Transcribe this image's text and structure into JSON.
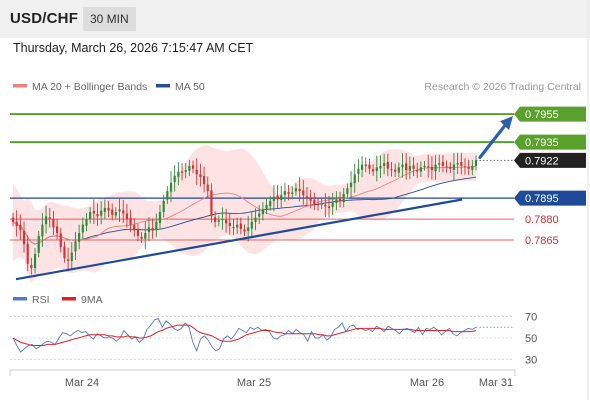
{
  "header": {
    "pair": "USD/CHF",
    "timeframe": "30 MIN",
    "timestamp": "Thursday, March 26, 2026 7:15:47 AM CET"
  },
  "legend": {
    "ma20": "MA 20 + Bollinger Bands",
    "ma50": "MA 50",
    "credit": "Research © 2026 Trading Central",
    "rsi": "RSI",
    "ma9": "9MA"
  },
  "colors": {
    "bull": "#2e8b3a",
    "bear": "#d63030",
    "ma20": "#f08080",
    "ma50": "#2b4d8c",
    "band_fill": "#fde3e3",
    "resistance": "#5aa02c",
    "support_blue": "#1f4a9a",
    "support_red": "#e86060",
    "current": "#222222",
    "rsi": "#5577cc",
    "rsi_ma": "#dd2222",
    "arrow": "#2b5fa8"
  },
  "chart_data": [
    {
      "type": "candlestick",
      "instrument": "USD/CHF",
      "timeframe": "30 MIN",
      "ylim": [
        0.7835,
        0.7968
      ],
      "x_labels": [
        "Mar 24",
        "Mar 25",
        "Mar 26",
        "Mar 31"
      ],
      "levels": [
        {
          "value": 0.7955,
          "label": "0.7955",
          "kind": "resistance"
        },
        {
          "value": 0.7935,
          "label": "0.7935",
          "kind": "resistance"
        },
        {
          "value": 0.7922,
          "label": "0.7922",
          "kind": "current"
        },
        {
          "value": 0.7895,
          "label": "0.7895",
          "kind": "pivot"
        },
        {
          "value": 0.788,
          "label": "0.7880",
          "kind": "support"
        },
        {
          "value": 0.7865,
          "label": "0.7865",
          "kind": "support"
        }
      ],
      "trendline": {
        "start": 0.7837,
        "end": 0.7894
      },
      "price_path": [
        0.7878,
        0.7875,
        0.7872,
        0.7862,
        0.7848,
        0.7845,
        0.7855,
        0.7868,
        0.7876,
        0.7882,
        0.788,
        0.7874,
        0.787,
        0.786,
        0.7852,
        0.785,
        0.7856,
        0.7864,
        0.787,
        0.7876,
        0.788,
        0.7885,
        0.7884,
        0.7882,
        0.7886,
        0.7888,
        0.7886,
        0.7883,
        0.7885,
        0.7887,
        0.7884,
        0.788,
        0.7876,
        0.7872,
        0.7868,
        0.7866,
        0.787,
        0.7874,
        0.7872,
        0.7878,
        0.7885,
        0.7893,
        0.79,
        0.7906,
        0.7911,
        0.7914,
        0.7913,
        0.7915,
        0.7918,
        0.7916,
        0.7912,
        0.791,
        0.7905,
        0.79,
        0.7882,
        0.7878,
        0.7879,
        0.788,
        0.7877,
        0.7875,
        0.7874,
        0.7876,
        0.7873,
        0.7871,
        0.7874,
        0.7878,
        0.7881,
        0.7884,
        0.7887,
        0.789,
        0.7893,
        0.7896,
        0.7894,
        0.7897,
        0.79,
        0.7898,
        0.7899,
        0.7902,
        0.79,
        0.7897,
        0.7895,
        0.7893,
        0.7891,
        0.789,
        0.7891,
        0.7889,
        0.7888,
        0.7892,
        0.7894,
        0.7893,
        0.7898,
        0.7902,
        0.7906,
        0.7912,
        0.7916,
        0.7919,
        0.7918,
        0.7916,
        0.7914,
        0.7917,
        0.7918,
        0.792,
        0.7916,
        0.7915,
        0.7914,
        0.7917,
        0.7919,
        0.7915,
        0.7918,
        0.7916,
        0.7914,
        0.7917,
        0.7918,
        0.7917,
        0.7915,
        0.7919,
        0.792,
        0.7918,
        0.7917,
        0.7916,
        0.7919,
        0.792,
        0.7918,
        0.7917,
        0.7916,
        0.7918,
        0.7922
      ],
      "forecast": {
        "from": 0.7922,
        "to": 0.7955
      }
    },
    {
      "type": "line",
      "name": "RSI",
      "ylim": [
        22,
        78
      ],
      "y_ticks": [
        70,
        50,
        30
      ],
      "x": "shared",
      "values": [
        50,
        43,
        37,
        40,
        43,
        44,
        40,
        42,
        45,
        47,
        46,
        44,
        50,
        55,
        54,
        52,
        55,
        57,
        55,
        56,
        52,
        49,
        54,
        52,
        50,
        51,
        50,
        47,
        50,
        57,
        53,
        49,
        51,
        46,
        49,
        58,
        62,
        67,
        68,
        60,
        66,
        63,
        59,
        57,
        59,
        64,
        60,
        46,
        38,
        49,
        52,
        48,
        42,
        38,
        40,
        49,
        52,
        49,
        53,
        59,
        57,
        55,
        60,
        58,
        60,
        57,
        58,
        56,
        50,
        49,
        52,
        53,
        57,
        54,
        58,
        55,
        53,
        47,
        56,
        50,
        50,
        53,
        48,
        51,
        58,
        60,
        64,
        56,
        61,
        62,
        58,
        59,
        57,
        58,
        56,
        61,
        59,
        56,
        61,
        59,
        57,
        54,
        58,
        59,
        57,
        55,
        60,
        53,
        59,
        58,
        60,
        57,
        53,
        56,
        59,
        54,
        52,
        55,
        57,
        59,
        58,
        60
      ],
      "ma9": [
        50,
        48,
        46,
        45,
        44,
        43,
        43,
        43,
        43,
        44,
        44,
        44,
        45,
        46,
        47,
        48,
        49,
        50,
        51,
        52,
        53,
        53,
        53,
        53,
        53,
        52,
        52,
        51,
        51,
        51,
        52,
        51,
        51,
        50,
        50,
        51,
        52,
        54,
        56,
        57,
        59,
        60,
        61,
        62,
        62,
        62,
        62,
        60,
        57,
        55,
        54,
        53,
        52,
        50,
        48,
        47,
        47,
        47,
        48,
        49,
        51,
        53,
        54,
        55,
        56,
        57,
        57,
        57,
        56,
        55,
        55,
        54,
        54,
        54,
        54,
        54,
        54,
        54,
        54,
        54,
        53,
        53,
        52,
        52,
        53,
        54,
        55,
        56,
        57,
        58,
        59,
        59,
        59,
        59,
        59,
        59,
        59,
        58,
        58,
        58,
        58,
        58,
        58,
        58,
        58,
        57,
        57,
        57,
        57,
        57,
        57,
        57,
        57,
        57,
        57,
        56,
        56,
        56,
        56,
        56,
        56,
        57
      ]
    }
  ]
}
